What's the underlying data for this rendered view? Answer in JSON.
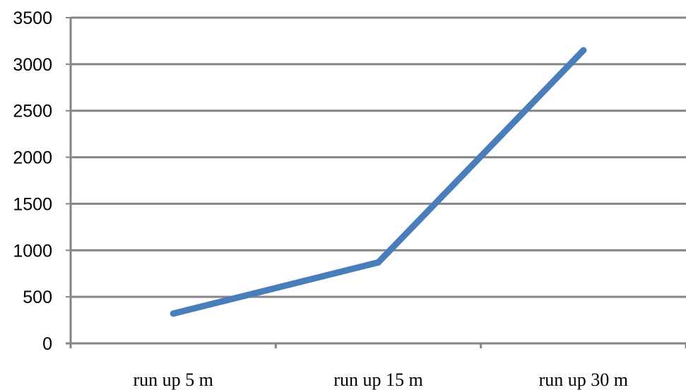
{
  "chart_data": {
    "type": "line",
    "categories": [
      "run up 5 m",
      "run up 15 m",
      "run up 30 m"
    ],
    "series": [
      {
        "values": [
          320,
          870,
          3150
        ],
        "color": "#4A7EBB"
      }
    ],
    "ylim": [
      0,
      3500
    ],
    "yticks": [
      0,
      500,
      1000,
      1500,
      2000,
      2500,
      3000,
      3500
    ],
    "ytick_labels": [
      "0",
      "500",
      "1000",
      "1500",
      "2000",
      "2500",
      "3000",
      "3500"
    ],
    "grid": true,
    "gridline_color": "#868686",
    "axis_color": "#868686",
    "legend": "none"
  }
}
